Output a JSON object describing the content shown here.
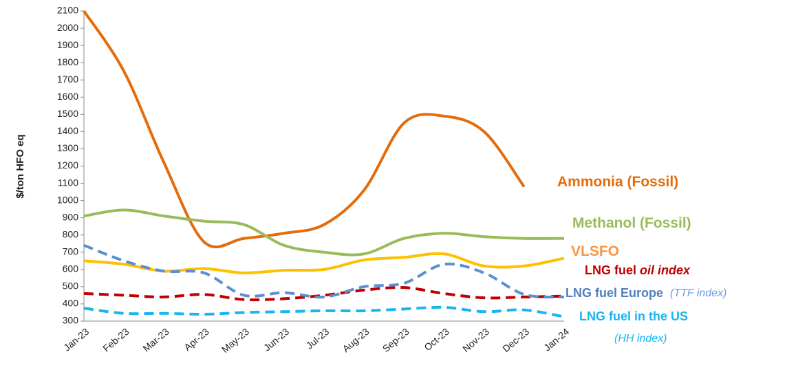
{
  "chart_data": {
    "type": "line",
    "y_label": "$/ton HFO eq",
    "categories": [
      "Jan-23",
      "Feb-23",
      "Mar-23",
      "Apr-23",
      "May-23",
      "Jun-23",
      "Jul-23",
      "Aug-23",
      "Sep-23",
      "Oct-23",
      "Nov-23",
      "Dec-23",
      "Jan-24"
    ],
    "ylim": [
      300,
      2100
    ],
    "yticks": [
      300,
      400,
      500,
      600,
      700,
      800,
      900,
      1000,
      1100,
      1200,
      1300,
      1400,
      1500,
      1600,
      1700,
      1800,
      1900,
      2000,
      2100
    ],
    "grid": false,
    "series": [
      {
        "name": "Ammonia (Fossil)",
        "color": "#e46c0a",
        "values": [
          2100,
          1750,
          1220,
          760,
          780,
          810,
          860,
          1060,
          1450,
          1490,
          1400,
          1080,
          null
        ]
      },
      {
        "name": "Methanol (Fossil)",
        "color": "#9bbb59",
        "values": [
          910,
          945,
          910,
          880,
          860,
          740,
          700,
          690,
          780,
          810,
          790,
          780,
          780
        ]
      },
      {
        "name": "VLSFO",
        "color": "#ffc000",
        "values": [
          650,
          630,
          590,
          605,
          580,
          595,
          600,
          655,
          670,
          690,
          620,
          620,
          665
        ]
      },
      {
        "name": "LNG fuel",
        "label_note": "oil index",
        "color": "#c00000",
        "dashed": true,
        "values": [
          460,
          450,
          440,
          455,
          425,
          430,
          450,
          480,
          495,
          460,
          435,
          440,
          445
        ]
      },
      {
        "name": "LNG fuel Europe",
        "label_note": "(TTF index)",
        "color": "#5b8fd0",
        "dashed": true,
        "values": [
          740,
          650,
          590,
          580,
          450,
          465,
          440,
          500,
          520,
          630,
          580,
          455,
          440
        ]
      },
      {
        "name": "LNG fuel in the US",
        "label_note": "(HH index)",
        "color": "#19b5f0",
        "dashed": true,
        "values": [
          375,
          345,
          345,
          340,
          350,
          355,
          360,
          360,
          370,
          380,
          355,
          365,
          325
        ]
      }
    ]
  }
}
